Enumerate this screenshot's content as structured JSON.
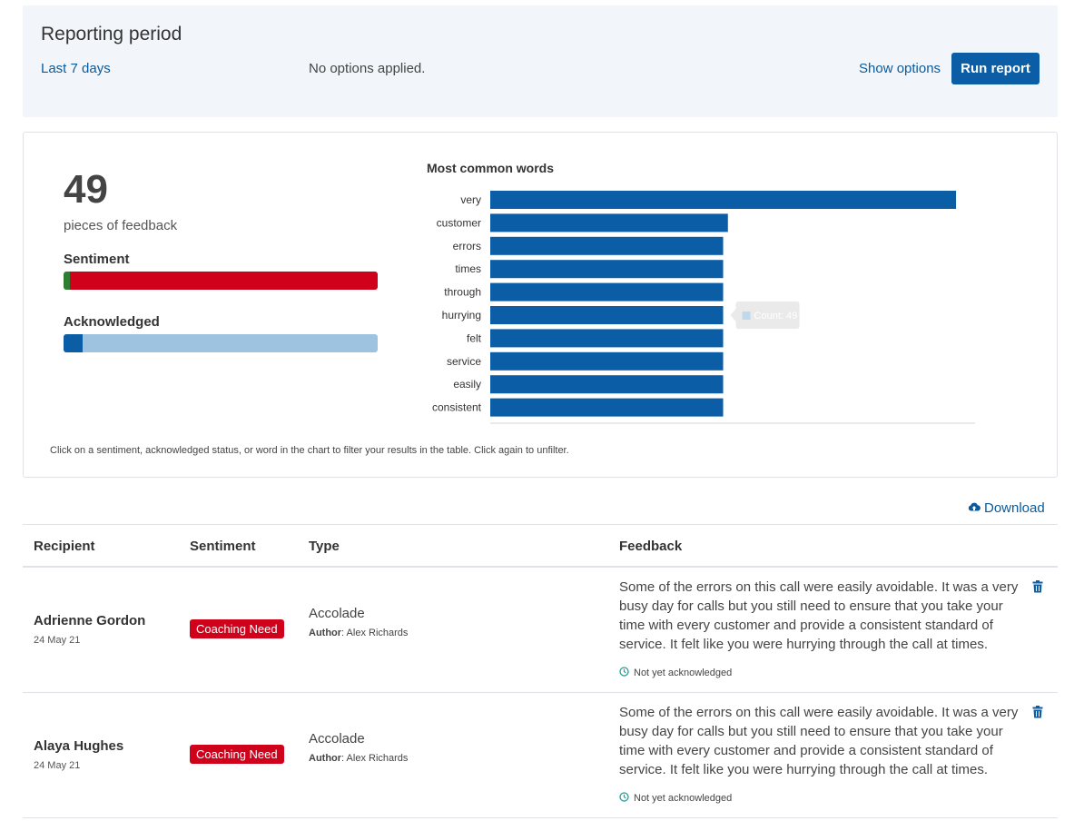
{
  "period": {
    "title": "Reporting period",
    "range": "Last 7 days",
    "options_text": "No options applied.",
    "show_options": "Show options",
    "run_report": "Run report"
  },
  "summary": {
    "count": "49",
    "count_label": "pieces of feedback",
    "sentiment_label": "Sentiment",
    "sentiment_positive_fraction": 0.02,
    "acknowledged_label": "Acknowledged",
    "acknowledged_fraction": 0.06,
    "hint": "Click on a sentiment, acknowledged status, or word in the chart to filter your results in the table. Click again to unfilter."
  },
  "chart_data": {
    "type": "bar",
    "orientation": "horizontal",
    "title": "Most common words",
    "categories": [
      "very",
      "customer",
      "errors",
      "times",
      "through",
      "hurrying",
      "felt",
      "service",
      "easily",
      "consistent"
    ],
    "values": [
      98,
      50,
      49,
      49,
      49,
      49,
      49,
      49,
      49,
      49
    ],
    "xlim": [
      0,
      102
    ],
    "tooltip": {
      "label": "Count:",
      "value": "49",
      "category": "hurrying"
    },
    "colors": {
      "bar": "#0b5da6"
    }
  },
  "table": {
    "download_label": "Download",
    "headers": [
      "Recipient",
      "Sentiment",
      "Type",
      "Feedback"
    ],
    "rows": [
      {
        "recipient": "Adrienne Gordon",
        "date": "24 May 21",
        "sentiment": "Coaching Need",
        "type": "Accolade",
        "author_label": "Author",
        "author": ": Alex Richards",
        "feedback": "Some of the errors on this call were easily avoidable. It was a very busy day for calls but you still need to ensure that you take your time with every customer and provide a consistent standard of service. It felt like you were hurrying through the call at times.",
        "status": "Not yet acknowledged"
      },
      {
        "recipient": "Alaya Hughes",
        "date": "24 May 21",
        "sentiment": "Coaching Need",
        "type": "Accolade",
        "author_label": "Author",
        "author": ": Alex Richards",
        "feedback": "Some of the errors on this call were easily avoidable. It was a very busy day for calls but you still need to ensure that you take your time with every customer and provide a consistent standard of service. It felt like you were hurrying through the call at times.",
        "status": "Not yet acknowledged"
      }
    ]
  },
  "icons": {
    "download": "cloud-upload-icon",
    "delete": "trash-icon",
    "status": "clock-icon"
  },
  "colors": {
    "accent": "#0b5da6",
    "link": "#0a5a9c",
    "negative": "#d0021b",
    "positive": "#2e7d32",
    "unacknowledged": "#9dc3e0"
  }
}
